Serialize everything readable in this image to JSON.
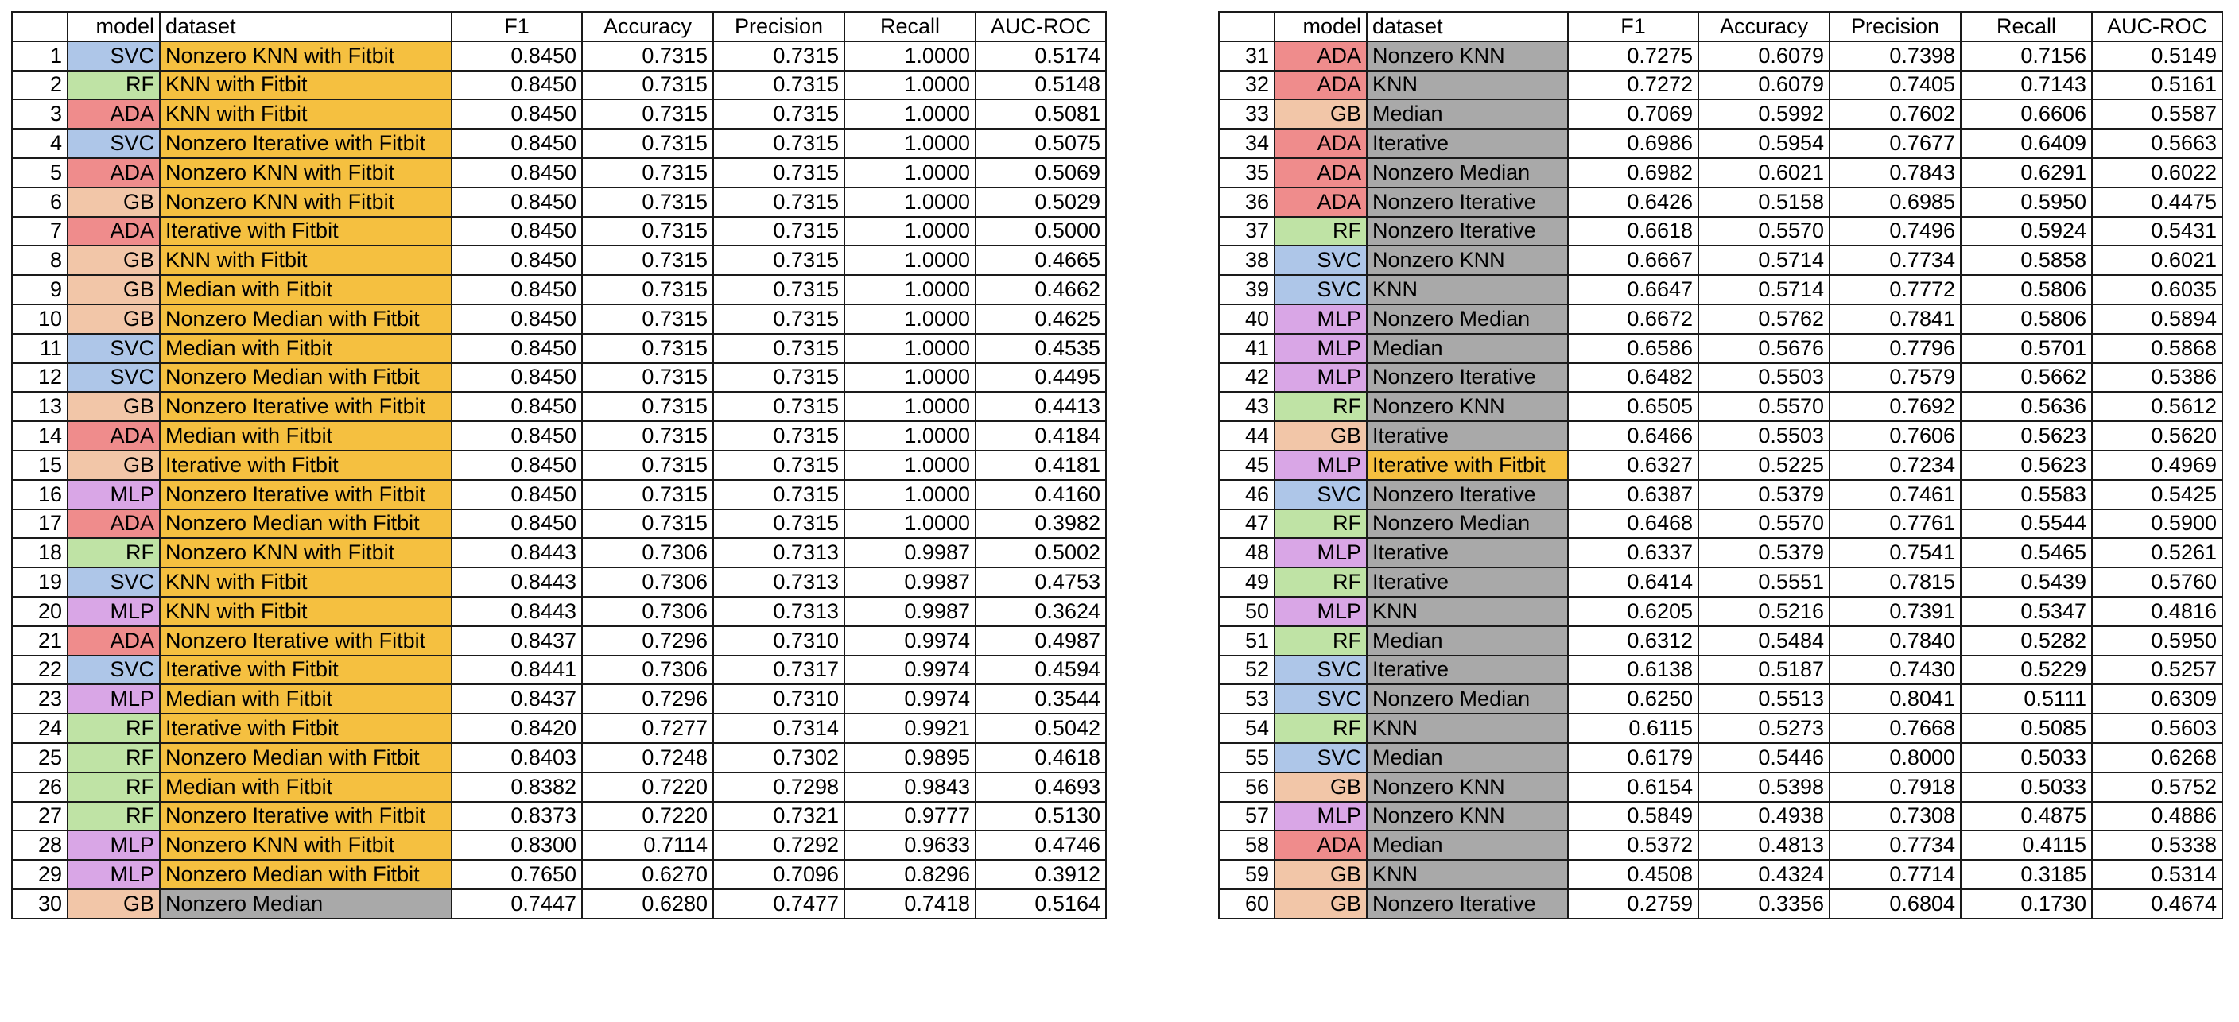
{
  "headers": {
    "model": "model",
    "dataset": "dataset",
    "f1": "F1",
    "accuracy": "Accuracy",
    "precision": "Precision",
    "recall": "Recall",
    "auc": "AUC-ROC"
  },
  "model_colors": {
    "SVC": "#aec6e8",
    "RF": "#bfe3a5",
    "ADA": "#ef8c8c",
    "GB": "#f2c6a8",
    "MLP": "#d9a6e6"
  },
  "dataset_colors": {
    "with_fitbit": "#f5c040",
    "without_fitbit": "#a9a9a9"
  },
  "rows_left": [
    {
      "idx": "1",
      "model": "SVC",
      "dataset": "Nonzero KNN with Fitbit",
      "f1": "0.8450",
      "accuracy": "0.7315",
      "precision": "0.7315",
      "recall": "1.0000",
      "auc": "0.5174"
    },
    {
      "idx": "2",
      "model": "RF",
      "dataset": "KNN with Fitbit",
      "f1": "0.8450",
      "accuracy": "0.7315",
      "precision": "0.7315",
      "recall": "1.0000",
      "auc": "0.5148"
    },
    {
      "idx": "3",
      "model": "ADA",
      "dataset": "KNN with Fitbit",
      "f1": "0.8450",
      "accuracy": "0.7315",
      "precision": "0.7315",
      "recall": "1.0000",
      "auc": "0.5081"
    },
    {
      "idx": "4",
      "model": "SVC",
      "dataset": "Nonzero Iterative with Fitbit",
      "f1": "0.8450",
      "accuracy": "0.7315",
      "precision": "0.7315",
      "recall": "1.0000",
      "auc": "0.5075"
    },
    {
      "idx": "5",
      "model": "ADA",
      "dataset": "Nonzero KNN with Fitbit",
      "f1": "0.8450",
      "accuracy": "0.7315",
      "precision": "0.7315",
      "recall": "1.0000",
      "auc": "0.5069"
    },
    {
      "idx": "6",
      "model": "GB",
      "dataset": "Nonzero KNN with Fitbit",
      "f1": "0.8450",
      "accuracy": "0.7315",
      "precision": "0.7315",
      "recall": "1.0000",
      "auc": "0.5029"
    },
    {
      "idx": "7",
      "model": "ADA",
      "dataset": "Iterative with Fitbit",
      "f1": "0.8450",
      "accuracy": "0.7315",
      "precision": "0.7315",
      "recall": "1.0000",
      "auc": "0.5000"
    },
    {
      "idx": "8",
      "model": "GB",
      "dataset": "KNN with Fitbit",
      "f1": "0.8450",
      "accuracy": "0.7315",
      "precision": "0.7315",
      "recall": "1.0000",
      "auc": "0.4665"
    },
    {
      "idx": "9",
      "model": "GB",
      "dataset": "Median with Fitbit",
      "f1": "0.8450",
      "accuracy": "0.7315",
      "precision": "0.7315",
      "recall": "1.0000",
      "auc": "0.4662"
    },
    {
      "idx": "10",
      "model": "GB",
      "dataset": "Nonzero Median with Fitbit",
      "f1": "0.8450",
      "accuracy": "0.7315",
      "precision": "0.7315",
      "recall": "1.0000",
      "auc": "0.4625"
    },
    {
      "idx": "11",
      "model": "SVC",
      "dataset": "Median with Fitbit",
      "f1": "0.8450",
      "accuracy": "0.7315",
      "precision": "0.7315",
      "recall": "1.0000",
      "auc": "0.4535"
    },
    {
      "idx": "12",
      "model": "SVC",
      "dataset": "Nonzero Median with Fitbit",
      "f1": "0.8450",
      "accuracy": "0.7315",
      "precision": "0.7315",
      "recall": "1.0000",
      "auc": "0.4495"
    },
    {
      "idx": "13",
      "model": "GB",
      "dataset": "Nonzero Iterative with Fitbit",
      "f1": "0.8450",
      "accuracy": "0.7315",
      "precision": "0.7315",
      "recall": "1.0000",
      "auc": "0.4413"
    },
    {
      "idx": "14",
      "model": "ADA",
      "dataset": "Median with Fitbit",
      "f1": "0.8450",
      "accuracy": "0.7315",
      "precision": "0.7315",
      "recall": "1.0000",
      "auc": "0.4184"
    },
    {
      "idx": "15",
      "model": "GB",
      "dataset": "Iterative with Fitbit",
      "f1": "0.8450",
      "accuracy": "0.7315",
      "precision": "0.7315",
      "recall": "1.0000",
      "auc": "0.4181"
    },
    {
      "idx": "16",
      "model": "MLP",
      "dataset": "Nonzero Iterative with Fitbit",
      "f1": "0.8450",
      "accuracy": "0.7315",
      "precision": "0.7315",
      "recall": "1.0000",
      "auc": "0.4160"
    },
    {
      "idx": "17",
      "model": "ADA",
      "dataset": "Nonzero Median with Fitbit",
      "f1": "0.8450",
      "accuracy": "0.7315",
      "precision": "0.7315",
      "recall": "1.0000",
      "auc": "0.3982"
    },
    {
      "idx": "18",
      "model": "RF",
      "dataset": "Nonzero KNN with Fitbit",
      "f1": "0.8443",
      "accuracy": "0.7306",
      "precision": "0.7313",
      "recall": "0.9987",
      "auc": "0.5002"
    },
    {
      "idx": "19",
      "model": "SVC",
      "dataset": "KNN with Fitbit",
      "f1": "0.8443",
      "accuracy": "0.7306",
      "precision": "0.7313",
      "recall": "0.9987",
      "auc": "0.4753"
    },
    {
      "idx": "20",
      "model": "MLP",
      "dataset": "KNN with Fitbit",
      "f1": "0.8443",
      "accuracy": "0.7306",
      "precision": "0.7313",
      "recall": "0.9987",
      "auc": "0.3624"
    },
    {
      "idx": "21",
      "model": "ADA",
      "dataset": "Nonzero Iterative with Fitbit",
      "f1": "0.8437",
      "accuracy": "0.7296",
      "precision": "0.7310",
      "recall": "0.9974",
      "auc": "0.4987"
    },
    {
      "idx": "22",
      "model": "SVC",
      "dataset": "Iterative with Fitbit",
      "f1": "0.8441",
      "accuracy": "0.7306",
      "precision": "0.7317",
      "recall": "0.9974",
      "auc": "0.4594"
    },
    {
      "idx": "23",
      "model": "MLP",
      "dataset": "Median with Fitbit",
      "f1": "0.8437",
      "accuracy": "0.7296",
      "precision": "0.7310",
      "recall": "0.9974",
      "auc": "0.3544"
    },
    {
      "idx": "24",
      "model": "RF",
      "dataset": "Iterative with Fitbit",
      "f1": "0.8420",
      "accuracy": "0.7277",
      "precision": "0.7314",
      "recall": "0.9921",
      "auc": "0.5042"
    },
    {
      "idx": "25",
      "model": "RF",
      "dataset": "Nonzero Median with Fitbit",
      "f1": "0.8403",
      "accuracy": "0.7248",
      "precision": "0.7302",
      "recall": "0.9895",
      "auc": "0.4618"
    },
    {
      "idx": "26",
      "model": "RF",
      "dataset": "Median with Fitbit",
      "f1": "0.8382",
      "accuracy": "0.7220",
      "precision": "0.7298",
      "recall": "0.9843",
      "auc": "0.4693"
    },
    {
      "idx": "27",
      "model": "RF",
      "dataset": "Nonzero Iterative with Fitbit",
      "f1": "0.8373",
      "accuracy": "0.7220",
      "precision": "0.7321",
      "recall": "0.9777",
      "auc": "0.5130"
    },
    {
      "idx": "28",
      "model": "MLP",
      "dataset": "Nonzero KNN with Fitbit",
      "f1": "0.8300",
      "accuracy": "0.7114",
      "precision": "0.7292",
      "recall": "0.9633",
      "auc": "0.4746"
    },
    {
      "idx": "29",
      "model": "MLP",
      "dataset": "Nonzero Median with Fitbit",
      "f1": "0.7650",
      "accuracy": "0.6270",
      "precision": "0.7096",
      "recall": "0.8296",
      "auc": "0.3912"
    },
    {
      "idx": "30",
      "model": "GB",
      "dataset": "Nonzero Median",
      "f1": "0.7447",
      "accuracy": "0.6280",
      "precision": "0.7477",
      "recall": "0.7418",
      "auc": "0.5164"
    }
  ],
  "rows_right": [
    {
      "idx": "31",
      "model": "ADA",
      "dataset": "Nonzero KNN",
      "f1": "0.7275",
      "accuracy": "0.6079",
      "precision": "0.7398",
      "recall": "0.7156",
      "auc": "0.5149"
    },
    {
      "idx": "32",
      "model": "ADA",
      "dataset": "KNN",
      "f1": "0.7272",
      "accuracy": "0.6079",
      "precision": "0.7405",
      "recall": "0.7143",
      "auc": "0.5161"
    },
    {
      "idx": "33",
      "model": "GB",
      "dataset": "Median",
      "f1": "0.7069",
      "accuracy": "0.5992",
      "precision": "0.7602",
      "recall": "0.6606",
      "auc": "0.5587"
    },
    {
      "idx": "34",
      "model": "ADA",
      "dataset": "Iterative",
      "f1": "0.6986",
      "accuracy": "0.5954",
      "precision": "0.7677",
      "recall": "0.6409",
      "auc": "0.5663"
    },
    {
      "idx": "35",
      "model": "ADA",
      "dataset": "Nonzero Median",
      "f1": "0.6982",
      "accuracy": "0.6021",
      "precision": "0.7843",
      "recall": "0.6291",
      "auc": "0.6022"
    },
    {
      "idx": "36",
      "model": "ADA",
      "dataset": "Nonzero Iterative",
      "f1": "0.6426",
      "accuracy": "0.5158",
      "precision": "0.6985",
      "recall": "0.5950",
      "auc": "0.4475"
    },
    {
      "idx": "37",
      "model": "RF",
      "dataset": "Nonzero Iterative",
      "f1": "0.6618",
      "accuracy": "0.5570",
      "precision": "0.7496",
      "recall": "0.5924",
      "auc": "0.5431"
    },
    {
      "idx": "38",
      "model": "SVC",
      "dataset": "Nonzero KNN",
      "f1": "0.6667",
      "accuracy": "0.5714",
      "precision": "0.7734",
      "recall": "0.5858",
      "auc": "0.6021"
    },
    {
      "idx": "39",
      "model": "SVC",
      "dataset": "KNN",
      "f1": "0.6647",
      "accuracy": "0.5714",
      "precision": "0.7772",
      "recall": "0.5806",
      "auc": "0.6035"
    },
    {
      "idx": "40",
      "model": "MLP",
      "dataset": "Nonzero Median",
      "f1": "0.6672",
      "accuracy": "0.5762",
      "precision": "0.7841",
      "recall": "0.5806",
      "auc": "0.5894"
    },
    {
      "idx": "41",
      "model": "MLP",
      "dataset": "Median",
      "f1": "0.6586",
      "accuracy": "0.5676",
      "precision": "0.7796",
      "recall": "0.5701",
      "auc": "0.5868"
    },
    {
      "idx": "42",
      "model": "MLP",
      "dataset": "Nonzero Iterative",
      "f1": "0.6482",
      "accuracy": "0.5503",
      "precision": "0.7579",
      "recall": "0.5662",
      "auc": "0.5386"
    },
    {
      "idx": "43",
      "model": "RF",
      "dataset": "Nonzero KNN",
      "f1": "0.6505",
      "accuracy": "0.5570",
      "precision": "0.7692",
      "recall": "0.5636",
      "auc": "0.5612"
    },
    {
      "idx": "44",
      "model": "GB",
      "dataset": "Iterative",
      "f1": "0.6466",
      "accuracy": "0.5503",
      "precision": "0.7606",
      "recall": "0.5623",
      "auc": "0.5620"
    },
    {
      "idx": "45",
      "model": "MLP",
      "dataset": "Iterative with Fitbit",
      "f1": "0.6327",
      "accuracy": "0.5225",
      "precision": "0.7234",
      "recall": "0.5623",
      "auc": "0.4969"
    },
    {
      "idx": "46",
      "model": "SVC",
      "dataset": "Nonzero Iterative",
      "f1": "0.6387",
      "accuracy": "0.5379",
      "precision": "0.7461",
      "recall": "0.5583",
      "auc": "0.5425"
    },
    {
      "idx": "47",
      "model": "RF",
      "dataset": "Nonzero Median",
      "f1": "0.6468",
      "accuracy": "0.5570",
      "precision": "0.7761",
      "recall": "0.5544",
      "auc": "0.5900"
    },
    {
      "idx": "48",
      "model": "MLP",
      "dataset": "Iterative",
      "f1": "0.6337",
      "accuracy": "0.5379",
      "precision": "0.7541",
      "recall": "0.5465",
      "auc": "0.5261"
    },
    {
      "idx": "49",
      "model": "RF",
      "dataset": "Iterative",
      "f1": "0.6414",
      "accuracy": "0.5551",
      "precision": "0.7815",
      "recall": "0.5439",
      "auc": "0.5760"
    },
    {
      "idx": "50",
      "model": "MLP",
      "dataset": "KNN",
      "f1": "0.6205",
      "accuracy": "0.5216",
      "precision": "0.7391",
      "recall": "0.5347",
      "auc": "0.4816"
    },
    {
      "idx": "51",
      "model": "RF",
      "dataset": "Median",
      "f1": "0.6312",
      "accuracy": "0.5484",
      "precision": "0.7840",
      "recall": "0.5282",
      "auc": "0.5950"
    },
    {
      "idx": "52",
      "model": "SVC",
      "dataset": "Iterative",
      "f1": "0.6138",
      "accuracy": "0.5187",
      "precision": "0.7430",
      "recall": "0.5229",
      "auc": "0.5257"
    },
    {
      "idx": "53",
      "model": "SVC",
      "dataset": "Nonzero Median",
      "f1": "0.6250",
      "accuracy": "0.5513",
      "precision": "0.8041",
      "recall": "0.5111",
      "auc": "0.6309"
    },
    {
      "idx": "54",
      "model": "RF",
      "dataset": "KNN",
      "f1": "0.6115",
      "accuracy": "0.5273",
      "precision": "0.7668",
      "recall": "0.5085",
      "auc": "0.5603"
    },
    {
      "idx": "55",
      "model": "SVC",
      "dataset": "Median",
      "f1": "0.6179",
      "accuracy": "0.5446",
      "precision": "0.8000",
      "recall": "0.5033",
      "auc": "0.6268"
    },
    {
      "idx": "56",
      "model": "GB",
      "dataset": "Nonzero KNN",
      "f1": "0.6154",
      "accuracy": "0.5398",
      "precision": "0.7918",
      "recall": "0.5033",
      "auc": "0.5752"
    },
    {
      "idx": "57",
      "model": "MLP",
      "dataset": "Nonzero KNN",
      "f1": "0.5849",
      "accuracy": "0.4938",
      "precision": "0.7308",
      "recall": "0.4875",
      "auc": "0.4886"
    },
    {
      "idx": "58",
      "model": "ADA",
      "dataset": "Median",
      "f1": "0.5372",
      "accuracy": "0.4813",
      "precision": "0.7734",
      "recall": "0.4115",
      "auc": "0.5338"
    },
    {
      "idx": "59",
      "model": "GB",
      "dataset": "KNN",
      "f1": "0.4508",
      "accuracy": "0.4324",
      "precision": "0.7714",
      "recall": "0.3185",
      "auc": "0.5314"
    },
    {
      "idx": "60",
      "model": "GB",
      "dataset": "Nonzero Iterative",
      "f1": "0.2759",
      "accuracy": "0.3356",
      "precision": "0.6804",
      "recall": "0.1730",
      "auc": "0.4674"
    }
  ]
}
